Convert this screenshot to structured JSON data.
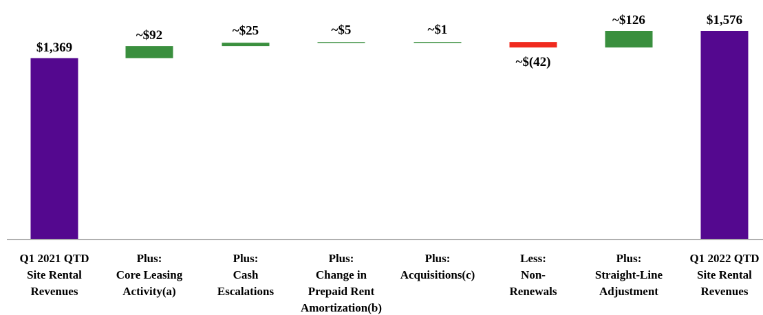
{
  "chart_data": {
    "type": "bar",
    "subtype": "waterfall",
    "categories": [
      [
        "Q1 2021 QTD",
        "Site Rental",
        "Revenues"
      ],
      [
        "Plus:",
        "Core Leasing",
        "Activity(a)"
      ],
      [
        "Plus:",
        "Cash",
        "Escalations"
      ],
      [
        "Plus:",
        "Change in",
        "Prepaid Rent",
        "Amortization(b)"
      ],
      [
        "Plus:",
        "Acquisitions(c)"
      ],
      [
        "Less:",
        "Non-",
        "Renewals"
      ],
      [
        "Plus:",
        "Straight-Line",
        "Adjustment"
      ],
      [
        "Q1 2022 QTD",
        "Site Rental",
        "Revenues"
      ]
    ],
    "values": [
      1369,
      92,
      25,
      5,
      1,
      -42,
      126,
      1576
    ],
    "bar_kinds": [
      "total",
      "delta",
      "delta",
      "delta",
      "delta",
      "delta",
      "delta",
      "total"
    ],
    "value_labels": [
      "$1,369",
      "~$92",
      "~$25",
      "~$5",
      "~$1",
      "~$(42)",
      "~$126",
      "$1,576"
    ],
    "ylim": [
      0,
      1600
    ],
    "grid": false,
    "legend": "none",
    "colors": {
      "total": "#54088f",
      "increase": "#3a8f3e",
      "decrease": "#f02a1e",
      "axis": "#b0b0b0"
    }
  }
}
